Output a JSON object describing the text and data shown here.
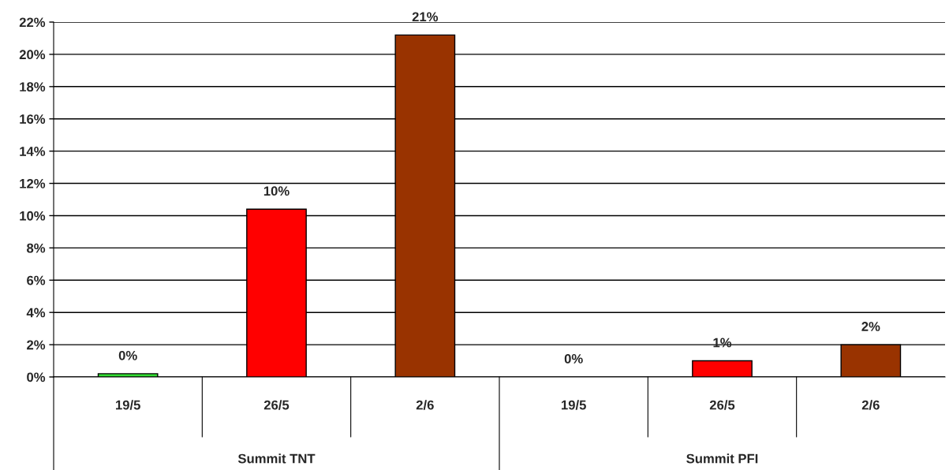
{
  "chart_data": {
    "type": "bar",
    "categories": [
      "19/5",
      "26/5",
      "2/6",
      "19/5",
      "26/5",
      "2/6"
    ],
    "values": [
      0.2,
      10.4,
      21.2,
      0,
      1.0,
      2.0
    ],
    "colors": [
      "#33dd33",
      "#ff0000",
      "#993300",
      null,
      "#ff0000",
      "#993300"
    ],
    "value_labels": [
      "0%",
      "10%",
      "21%",
      "0%",
      "1%",
      "2%"
    ],
    "annotations": [
      "Summit TNT",
      "Summit PFI"
    ],
    "ylim": [
      0,
      22
    ],
    "yticks": [
      {
        "value": 0,
        "label": "0%"
      },
      {
        "value": 2,
        "label": "2%"
      },
      {
        "value": 4,
        "label": "4%"
      },
      {
        "value": 6,
        "label": "6%"
      },
      {
        "value": 8,
        "label": "8%"
      },
      {
        "value": 10,
        "label": "10%"
      },
      {
        "value": 12,
        "label": "12%"
      },
      {
        "value": 14,
        "label": "14%"
      },
      {
        "value": 16,
        "label": "16%"
      },
      {
        "value": 18,
        "label": "18%"
      },
      {
        "value": 20,
        "label": "20%"
      },
      {
        "value": 22,
        "label": "22%"
      }
    ],
    "grid": "y",
    "legend": false
  }
}
